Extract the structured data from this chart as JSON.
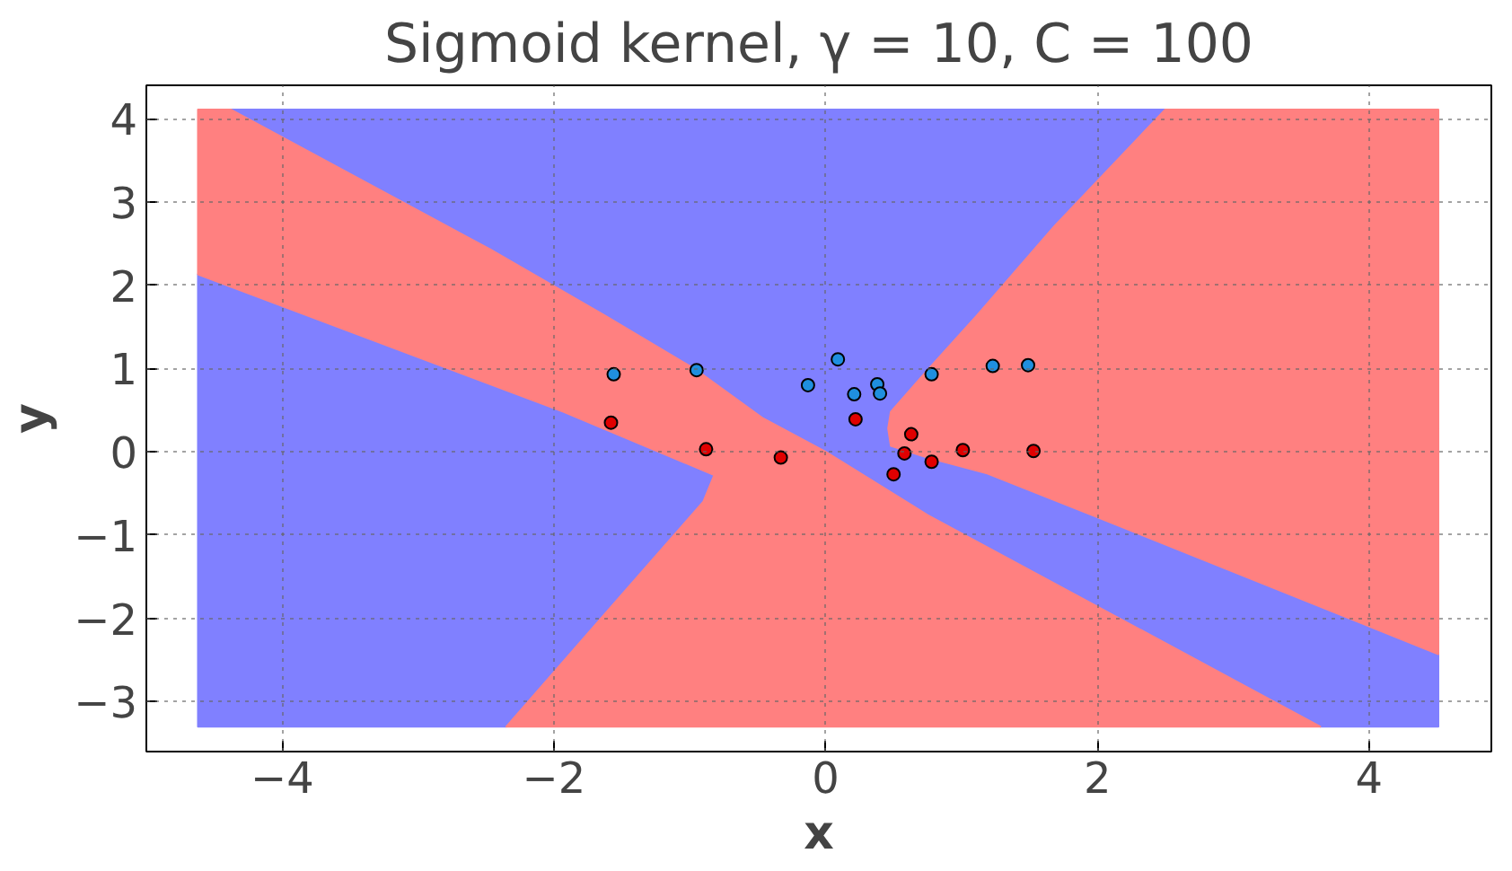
{
  "chart_data": {
    "type": "scatter",
    "title": "Sigmoid kernel, γ = 10, C = 100",
    "xlabel": "x",
    "ylabel": "y",
    "xlim": [
      -5,
      4.9
    ],
    "ylim": [
      -3.6,
      4.4
    ],
    "xticks": [
      {
        "value": -4,
        "label": "−4"
      },
      {
        "value": -2,
        "label": "−2"
      },
      0,
      2,
      4
    ],
    "yticks": [
      {
        "value": -3,
        "label": "−3"
      },
      {
        "value": -2,
        "label": "−2"
      },
      {
        "value": -1,
        "label": "−1"
      },
      0,
      1,
      2,
      3,
      4
    ],
    "grid": true,
    "line_style": "dotted",
    "series": [
      {
        "type": "area",
        "color": "#8080ff",
        "x": [
          -4.62,
          -1.93,
          -0.82,
          -0.9,
          -1.6,
          -2.35,
          -4.62
        ],
        "values": [
          2.13,
          0.48,
          -0.28,
          -0.6,
          -1.9,
          -3.3,
          -3.3
        ]
      },
      {
        "type": "area",
        "color": "#8080ff",
        "x": [
          -4.38,
          2.5,
          1.69,
          1.11,
          0.75,
          0.48,
          0.46,
          0.48,
          0.75,
          1.19,
          1.96,
          4.51,
          4.51,
          3.64,
          0.75,
          0,
          -0.46,
          -0.95,
          -1.62,
          -2.47
        ],
        "values": [
          4.11,
          4.11,
          2.72,
          1.63,
          0.98,
          0.48,
          0.28,
          0.07,
          -0.07,
          -0.26,
          -0.76,
          -2.43,
          -3.3,
          -3.3,
          -0.76,
          0,
          0.4,
          0.98,
          1.63,
          2.43
        ]
      },
      {
        "type": "area",
        "color": "#ff8080",
        "x": [
          0.46,
          0.48,
          0.75,
          1.11,
          1.69,
          2.5,
          4.51,
          4.51,
          1.96,
          1.19,
          0.75,
          0.48
        ],
        "values": [
          0.28,
          0.48,
          0.98,
          1.63,
          2.72,
          4.11,
          4.11,
          -2.43,
          -0.76,
          -0.26,
          -0.07,
          0.07
        ]
      },
      {
        "type": "area",
        "color": "#ff8080",
        "x": [
          -4.62,
          -4.38,
          -2.47,
          -1.62,
          -0.95,
          -0.46,
          0,
          0.75,
          3.64,
          -2.35,
          -1.6,
          -0.9,
          -0.82,
          -1.93,
          -4.62
        ],
        "values": [
          4.11,
          4.11,
          2.43,
          1.63,
          0.98,
          0.4,
          0,
          -0.76,
          -3.3,
          -3.3,
          -1.9,
          -0.6,
          -0.28,
          0.48,
          2.13
        ]
      },
      {
        "color": "#1f8fdf",
        "marker": "circle",
        "x": [
          -1.56,
          -0.95,
          -0.13,
          0.09,
          0.21,
          0.38,
          0.4,
          0.78,
          1.23,
          1.49
        ],
        "values": [
          0.93,
          0.98,
          0.8,
          1.11,
          0.69,
          0.81,
          0.7,
          0.93,
          1.03,
          1.04
        ]
      },
      {
        "color": "#e00000",
        "marker": "circle",
        "x": [
          -1.58,
          -0.88,
          -0.33,
          0.22,
          0.63,
          0.58,
          0.5,
          0.78,
          1.01,
          1.53
        ],
        "values": [
          0.35,
          0.03,
          -0.07,
          0.39,
          0.21,
          -0.02,
          -0.27,
          -0.12,
          0.02,
          0.01
        ]
      }
    ]
  }
}
